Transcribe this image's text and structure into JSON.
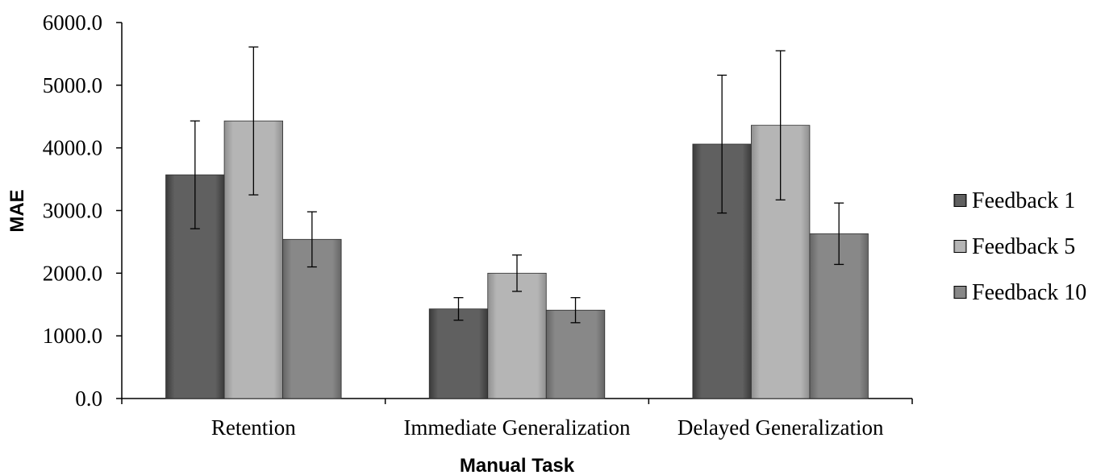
{
  "chart_data": {
    "type": "bar",
    "title": "",
    "xlabel": "Manual Task",
    "ylabel": "MAE",
    "ylim": [
      0,
      6000
    ],
    "yticks": [
      0,
      1000,
      2000,
      3000,
      4000,
      5000,
      6000
    ],
    "ytick_labels": [
      "0.0",
      "1000.0",
      "2000.0",
      "3000.0",
      "4000.0",
      "5000.0",
      "6000.0"
    ],
    "categories": [
      "Retention",
      "Immediate Generalization",
      "Delayed Generalization"
    ],
    "series": [
      {
        "name": "Feedback 1",
        "color": "#5e5e5e",
        "values": [
          3570,
          1430,
          4060
        ],
        "error": [
          860,
          180,
          1100
        ]
      },
      {
        "name": "Feedback 5",
        "color": "#b3b3b3",
        "values": [
          4430,
          2000,
          4360
        ],
        "error": [
          1180,
          290,
          1190
        ]
      },
      {
        "name": "Feedback 10",
        "color": "#868686",
        "values": [
          2540,
          1410,
          2630
        ],
        "error": [
          440,
          200,
          490
        ]
      }
    ],
    "legend_position": "right",
    "grid": false,
    "error_bars": true
  }
}
